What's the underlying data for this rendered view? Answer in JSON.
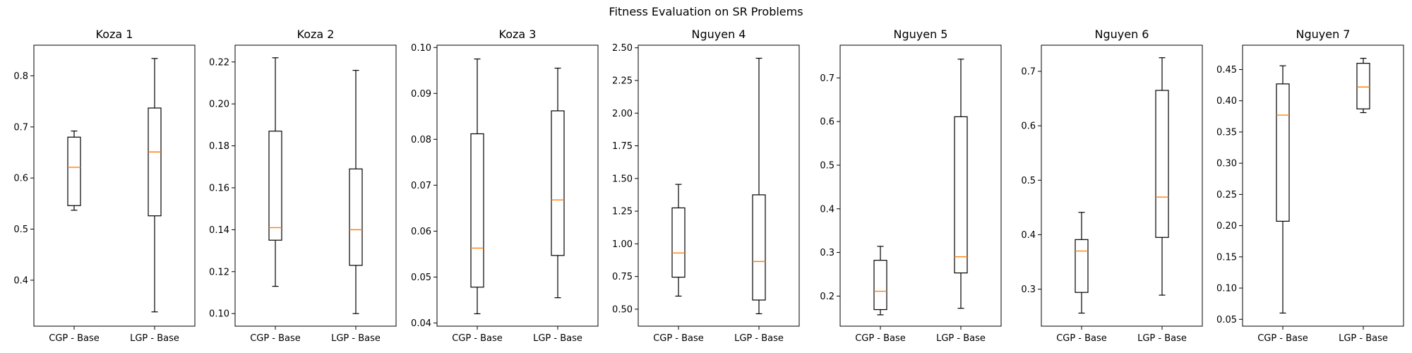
{
  "figure_title": "Fitness Evaluation on SR Problems",
  "chart_data": [
    {
      "type": "box",
      "title": "Koza 1",
      "categories": [
        "CGP - Base",
        "LGP - Base"
      ],
      "ylim": [
        0.31,
        0.86
      ],
      "yticks": [
        0.4,
        0.5,
        0.6,
        0.7,
        0.8
      ],
      "ytick_labels": [
        "0.4",
        "0.5",
        "0.6",
        "0.7",
        "0.8"
      ],
      "boxes": [
        {
          "whislo": 0.537,
          "q1": 0.546,
          "med": 0.621,
          "q3": 0.68,
          "whishi": 0.692
        },
        {
          "whislo": 0.338,
          "q1": 0.526,
          "med": 0.651,
          "q3": 0.737,
          "whishi": 0.834
        }
      ]
    },
    {
      "type": "box",
      "title": "Koza 2",
      "categories": [
        "CGP - Base",
        "LGP - Base"
      ],
      "ylim": [
        0.094,
        0.228
      ],
      "yticks": [
        0.1,
        0.12,
        0.14,
        0.16,
        0.18,
        0.2,
        0.22
      ],
      "ytick_labels": [
        "0.10",
        "0.12",
        "0.14",
        "0.16",
        "0.18",
        "0.20",
        "0.22"
      ],
      "boxes": [
        {
          "whislo": 0.113,
          "q1": 0.135,
          "med": 0.141,
          "q3": 0.187,
          "whishi": 0.222
        },
        {
          "whislo": 0.1,
          "q1": 0.123,
          "med": 0.14,
          "q3": 0.169,
          "whishi": 0.216
        }
      ]
    },
    {
      "type": "box",
      "title": "Koza 3",
      "categories": [
        "CGP - Base",
        "LGP - Base"
      ],
      "ylim": [
        0.0393,
        0.1005
      ],
      "yticks": [
        0.04,
        0.05,
        0.06,
        0.07,
        0.08,
        0.09,
        0.1
      ],
      "ytick_labels": [
        "0.04",
        "0.05",
        "0.06",
        "0.07",
        "0.08",
        "0.09",
        "0.10"
      ],
      "boxes": [
        {
          "whislo": 0.042,
          "q1": 0.0478,
          "med": 0.0563,
          "q3": 0.0812,
          "whishi": 0.0975
        },
        {
          "whislo": 0.0455,
          "q1": 0.0547,
          "med": 0.0668,
          "q3": 0.0862,
          "whishi": 0.0955
        }
      ]
    },
    {
      "type": "box",
      "title": "Nguyen 4",
      "categories": [
        "CGP - Base",
        "LGP - Base"
      ],
      "ylim": [
        0.37,
        2.52
      ],
      "yticks": [
        0.5,
        0.75,
        1.0,
        1.25,
        1.5,
        1.75,
        2.0,
        2.25,
        2.5
      ],
      "ytick_labels": [
        "0.50",
        "0.75",
        "1.00",
        "1.25",
        "1.50",
        "1.75",
        "2.00",
        "2.25",
        "2.50"
      ],
      "boxes": [
        {
          "whislo": 0.6,
          "q1": 0.745,
          "med": 0.93,
          "q3": 1.275,
          "whishi": 1.455
        },
        {
          "whislo": 0.465,
          "q1": 0.57,
          "med": 0.865,
          "q3": 1.375,
          "whishi": 2.42
        }
      ]
    },
    {
      "type": "box",
      "title": "Nguyen 5",
      "categories": [
        "CGP - Base",
        "LGP - Base"
      ],
      "ylim": [
        0.131,
        0.775
      ],
      "yticks": [
        0.2,
        0.3,
        0.4,
        0.5,
        0.6,
        0.7
      ],
      "ytick_labels": [
        "0.2",
        "0.3",
        "0.4",
        "0.5",
        "0.6",
        "0.7"
      ],
      "boxes": [
        {
          "whislo": 0.157,
          "q1": 0.169,
          "med": 0.211,
          "q3": 0.282,
          "whishi": 0.314
        },
        {
          "whislo": 0.172,
          "q1": 0.253,
          "med": 0.29,
          "q3": 0.611,
          "whishi": 0.743
        }
      ]
    },
    {
      "type": "box",
      "title": "Nguyen 6",
      "categories": [
        "CGP - Base",
        "LGP - Base"
      ],
      "ylim": [
        0.232,
        0.748
      ],
      "yticks": [
        0.3,
        0.4,
        0.5,
        0.6,
        0.7
      ],
      "ytick_labels": [
        "0.3",
        "0.4",
        "0.5",
        "0.6",
        "0.7"
      ],
      "boxes": [
        {
          "whislo": 0.256,
          "q1": 0.294,
          "med": 0.37,
          "q3": 0.391,
          "whishi": 0.441
        },
        {
          "whislo": 0.289,
          "q1": 0.395,
          "med": 0.469,
          "q3": 0.665,
          "whishi": 0.725
        }
      ]
    },
    {
      "type": "box",
      "title": "Nguyen 7",
      "categories": [
        "CGP - Base",
        "LGP - Base"
      ],
      "ylim": [
        0.039,
        0.489
      ],
      "yticks": [
        0.05,
        0.1,
        0.15,
        0.2,
        0.25,
        0.3,
        0.35,
        0.4,
        0.45
      ],
      "ytick_labels": [
        "0.05",
        "0.10",
        "0.15",
        "0.20",
        "0.25",
        "0.30",
        "0.35",
        "0.40",
        "0.45"
      ],
      "boxes": [
        {
          "whislo": 0.06,
          "q1": 0.207,
          "med": 0.377,
          "q3": 0.427,
          "whishi": 0.456
        },
        {
          "whislo": 0.381,
          "q1": 0.387,
          "med": 0.422,
          "q3": 0.46,
          "whishi": 0.468
        }
      ]
    }
  ]
}
